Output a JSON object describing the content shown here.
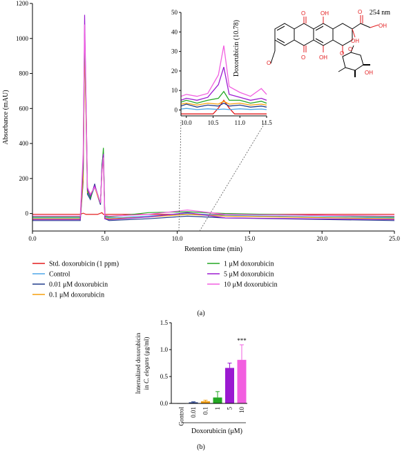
{
  "panel_a_label": "(a)",
  "panel_b_label": "(b)",
  "chart_data": [
    {
      "type": "line",
      "wavelength_label": "254 nm",
      "xlabel": "Retention time (min)",
      "ylabel": "Absorbance (mAU)",
      "xlim": [
        0,
        25
      ],
      "ylim": [
        -100,
        1200
      ],
      "xticks": [
        "0.0",
        "5.0",
        "10.0",
        "15.0",
        "20.0",
        "25.0"
      ],
      "yticks": [
        "0",
        "200",
        "400",
        "600",
        "800",
        "1000",
        "1200"
      ],
      "legend": {
        "left": [
          {
            "name": "Std. doxorubicin (1 ppm)",
            "color": "#e31a1c"
          },
          {
            "name": "Control",
            "color": "#4da6e8"
          },
          {
            "name": "0.01 μM doxorubicin",
            "color": "#1f3a8a"
          },
          {
            "name": "0.1 μM doxorubicin",
            "color": "#f59e0b"
          }
        ],
        "right": [
          {
            "name": "1 μM doxorubicin",
            "color": "#22a722"
          },
          {
            "name": "5 μM doxorubicin",
            "color": "#9b19d1"
          },
          {
            "name": "10 μM doxorubicin",
            "color": "#f25ee0"
          }
        ]
      },
      "series": [
        {
          "name": "Std. doxorubicin (1 ppm)",
          "color": "#e31a1c",
          "x": [
            0,
            3.3,
            3.5,
            3.7,
            4.5,
            4.8,
            4.9,
            5.2,
            10.5,
            10.7,
            10.9,
            25
          ],
          "y": [
            -5,
            -5,
            2,
            -5,
            -5,
            5,
            -5,
            -5,
            -5,
            5,
            -5,
            -5
          ]
        },
        {
          "name": "Control",
          "color": "#4da6e8",
          "x": [
            0,
            3.3,
            3.5,
            3.6,
            3.7,
            3.8,
            4.0,
            4.3,
            4.5,
            4.7,
            4.8,
            4.9,
            5.0,
            5.3,
            8.0,
            10.7,
            13.3,
            25
          ],
          "y": [
            -25,
            -25,
            240,
            1020,
            600,
            120,
            90,
            150,
            110,
            60,
            250,
            300,
            -20,
            -25,
            -15,
            0,
            -10,
            -25
          ]
        },
        {
          "name": "0.01 μM doxorubicin",
          "color": "#1f3a8a",
          "x": [
            0,
            3.3,
            3.5,
            3.6,
            3.7,
            3.8,
            4.0,
            4.3,
            4.5,
            4.7,
            4.8,
            4.9,
            5.0,
            5.3,
            8.0,
            10.7,
            13.3,
            25
          ],
          "y": [
            -40,
            -40,
            180,
            1000,
            560,
            110,
            80,
            170,
            100,
            50,
            280,
            350,
            -30,
            -40,
            -30,
            -15,
            -25,
            -40
          ]
        },
        {
          "name": "0.1 μM doxorubicin",
          "color": "#f59e0b",
          "x": [
            0,
            3.3,
            3.5,
            3.6,
            3.7,
            3.8,
            4.0,
            4.3,
            4.5,
            4.7,
            4.8,
            4.9,
            5.0,
            5.3,
            8.0,
            10.7,
            13.3,
            25
          ],
          "y": [
            -30,
            -30,
            200,
            950,
            540,
            120,
            110,
            150,
            100,
            60,
            240,
            310,
            -25,
            -30,
            -20,
            -5,
            -15,
            -30
          ]
        },
        {
          "name": "1 μM doxorubicin",
          "color": "#22a722",
          "x": [
            0,
            3.3,
            3.5,
            3.6,
            3.7,
            3.8,
            4.0,
            4.3,
            4.5,
            4.7,
            4.8,
            4.9,
            5.0,
            5.3,
            8.0,
            10.7,
            13.3,
            25
          ],
          "y": [
            -20,
            -20,
            260,
            1030,
            620,
            130,
            90,
            160,
            110,
            60,
            260,
            375,
            -15,
            -20,
            5,
            10,
            0,
            -20
          ]
        },
        {
          "name": "5 μM doxorubicin",
          "color": "#9b19d1",
          "x": [
            0,
            3.3,
            3.5,
            3.6,
            3.7,
            3.8,
            4.0,
            4.3,
            4.5,
            4.7,
            4.8,
            4.9,
            5.0,
            5.3,
            8.0,
            10.7,
            13.3,
            25
          ],
          "y": [
            -35,
            -35,
            300,
            1135,
            650,
            140,
            100,
            160,
            110,
            60,
            250,
            340,
            -30,
            -35,
            -20,
            5,
            -25,
            -35
          ]
        },
        {
          "name": "10 μM doxorubicin",
          "color": "#f25ee0",
          "x": [
            0,
            3.3,
            3.5,
            3.6,
            3.7,
            3.8,
            4.0,
            4.3,
            4.5,
            4.7,
            4.8,
            4.9,
            5.0,
            5.3,
            8.0,
            10.7,
            13.3,
            25
          ],
          "y": [
            -15,
            -15,
            340,
            1080,
            640,
            150,
            110,
            150,
            110,
            60,
            240,
            320,
            -10,
            -15,
            -5,
            20,
            -5,
            -15
          ]
        }
      ]
    },
    {
      "type": "line",
      "xlim": [
        9.9,
        11.5
      ],
      "ylim": [
        -3,
        50
      ],
      "xticks": [
        "10.0",
        "10.5",
        "11.0",
        "11.5"
      ],
      "yticks": [
        "0",
        "10",
        "20",
        "30",
        "40",
        "50"
      ],
      "annotation": "Doxorubicin (10.78)",
      "series": [
        {
          "name": "Std. doxorubicin (1 ppm)",
          "color": "#e31a1c",
          "x": [
            9.9,
            10.5,
            10.6,
            10.7,
            10.8,
            10.9,
            11.5
          ],
          "y": [
            -2,
            -2,
            1,
            5,
            1,
            -2,
            -2
          ]
        },
        {
          "name": "Control",
          "color": "#4da6e8",
          "x": [
            9.9,
            10.0,
            10.2,
            10.4,
            10.6,
            10.7,
            10.8,
            11.0,
            11.2,
            11.4,
            11.5
          ],
          "y": [
            0.5,
            0.8,
            0.2,
            0.6,
            0.3,
            0.5,
            0.2,
            0.6,
            0.3,
            0.5,
            0.2
          ]
        },
        {
          "name": "0.01 μM doxorubicin",
          "color": "#1f3a8a",
          "x": [
            9.9,
            10.0,
            10.2,
            10.4,
            10.6,
            10.7,
            10.8,
            11.0,
            11.2,
            11.4,
            11.5
          ],
          "y": [
            2,
            3,
            1.5,
            2.5,
            2,
            3.5,
            2,
            2.5,
            1.5,
            2,
            1.5
          ]
        },
        {
          "name": "0.1 μM doxorubicin",
          "color": "#f59e0b",
          "x": [
            9.9,
            10.0,
            10.2,
            10.4,
            10.6,
            10.7,
            10.8,
            11.0,
            11.2,
            11.4,
            11.5
          ],
          "y": [
            3,
            3.5,
            2.5,
            3.5,
            3,
            4.5,
            3,
            3.5,
            2.5,
            3,
            2.5
          ]
        },
        {
          "name": "1 μM doxorubicin",
          "color": "#22a722",
          "x": [
            9.9,
            10.0,
            10.2,
            10.4,
            10.6,
            10.7,
            10.8,
            11.0,
            11.2,
            11.4,
            11.5
          ],
          "y": [
            4,
            5,
            3.5,
            5,
            6,
            9.5,
            5,
            5,
            3.5,
            4.5,
            3.5
          ]
        },
        {
          "name": "5 μM doxorubicin",
          "color": "#9b19d1",
          "x": [
            9.9,
            10.0,
            10.2,
            10.4,
            10.6,
            10.7,
            10.8,
            11.0,
            11.2,
            11.4,
            11.5
          ],
          "y": [
            5,
            6,
            5,
            6.5,
            13,
            22,
            8,
            6.5,
            5,
            6,
            5
          ]
        },
        {
          "name": "10 μM doxorubicin",
          "color": "#f25ee0",
          "x": [
            9.9,
            10.0,
            10.2,
            10.4,
            10.6,
            10.7,
            10.8,
            11.0,
            11.2,
            11.4,
            11.5
          ],
          "y": [
            7,
            8,
            7,
            8.5,
            18,
            33,
            12,
            9,
            7,
            11,
            8
          ]
        }
      ]
    },
    {
      "type": "bar",
      "ylabel_line1": "Internalized doxorubicin",
      "ylabel_line2_prefix": "in ",
      "ylabel_line2_italic": "C. elegans",
      "ylabel_line2_suffix": " (μg/ml)",
      "xlabel": "Doxorubicin (μM)",
      "categories": [
        "Control",
        "0.01",
        "0.1",
        "1",
        "5",
        "10"
      ],
      "values": [
        0,
        0.02,
        0.04,
        0.11,
        0.66,
        0.81
      ],
      "errors": [
        0,
        0.01,
        0.02,
        0.11,
        0.09,
        0.28
      ],
      "colors": [
        "#777777",
        "#1f3a8a",
        "#f59e0b",
        "#22a722",
        "#9b19d1",
        "#f25ee0"
      ],
      "significance": [
        {
          "index": 5,
          "label": "***"
        }
      ],
      "ylim": [
        0,
        1.5
      ],
      "yticks": [
        "0.0",
        "0.5",
        "1.0",
        "1.5"
      ]
    }
  ]
}
